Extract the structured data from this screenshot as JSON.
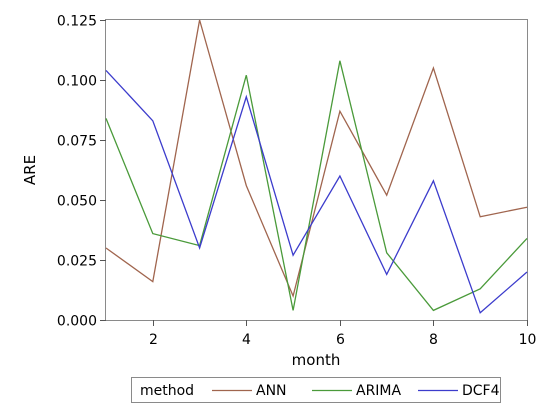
{
  "chart_data": {
    "type": "line",
    "xlabel": "month",
    "ylabel": "ARE",
    "xlim": [
      1,
      10
    ],
    "ylim": [
      0,
      0.125
    ],
    "x_ticks": [
      2,
      4,
      6,
      8,
      10
    ],
    "y_ticks": [
      0.0,
      0.025,
      0.05,
      0.075,
      0.1,
      0.125
    ],
    "y_tick_labels": [
      "0.000",
      "0.025",
      "0.050",
      "0.075",
      "0.100",
      "0.125"
    ],
    "grid": false,
    "legend": {
      "position": "bottom",
      "title": "method"
    },
    "x": [
      1,
      2,
      3,
      4,
      5,
      6,
      7,
      8,
      9,
      10
    ],
    "series": [
      {
        "name": "ANN",
        "color": "#a0654e",
        "values": [
          0.03,
          0.016,
          0.125,
          0.056,
          0.01,
          0.087,
          0.052,
          0.105,
          0.043,
          0.047
        ]
      },
      {
        "name": "ARIMA",
        "color": "#4a9a3a",
        "values": [
          0.084,
          0.036,
          0.031,
          0.102,
          0.004,
          0.108,
          0.028,
          0.004,
          0.013,
          0.034
        ]
      },
      {
        "name": "DCF4",
        "color": "#3c3ccc",
        "values": [
          0.104,
          0.083,
          0.03,
          0.093,
          0.027,
          0.06,
          0.019,
          0.058,
          0.003,
          0.02
        ]
      }
    ]
  }
}
